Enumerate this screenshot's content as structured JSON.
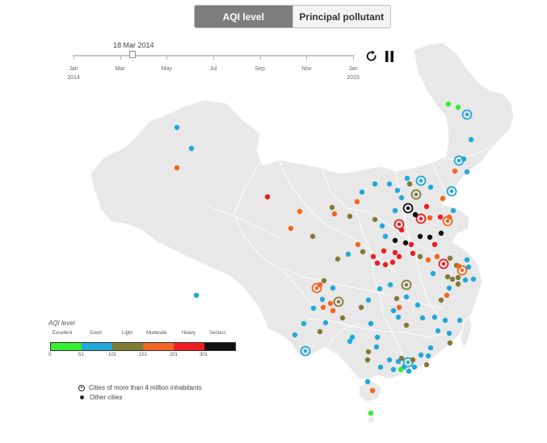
{
  "toggle": {
    "active_label": "AQI level",
    "inactive_label": "Principal pollutant"
  },
  "timeline": {
    "current_date": "18 Mar 2014",
    "position": 0.21,
    "ticks": [
      {
        "label": "Jan",
        "sub": "2014"
      },
      {
        "label": "Mar",
        "sub": ""
      },
      {
        "label": "May",
        "sub": ""
      },
      {
        "label": "Jul",
        "sub": ""
      },
      {
        "label": "Sep",
        "sub": ""
      },
      {
        "label": "Nov",
        "sub": ""
      },
      {
        "label": "Jan",
        "sub": "2015"
      }
    ]
  },
  "controls": {
    "refresh_icon": "refresh-icon",
    "pause_icon": "pause-icon"
  },
  "colors": {
    "Excellent": "#33ee33",
    "Good": "#21a8d8",
    "Light": "#7f7a36",
    "Moderate": "#f26522",
    "Heavy": "#ee1d24",
    "Serious": "#111111",
    "land": "#e8e8e8",
    "border": "#ffffff"
  },
  "legend": {
    "title": "AQI level",
    "categories": [
      "Excellent",
      "Good",
      "Light",
      "Moderate",
      "Heavy",
      "Serious"
    ],
    "thresholds": [
      "0",
      "51",
      "101",
      "151",
      "201",
      "301"
    ],
    "big_city_label": "Cities of more than 4 million inhabitants",
    "other_city_label": "Other cities"
  }
}
